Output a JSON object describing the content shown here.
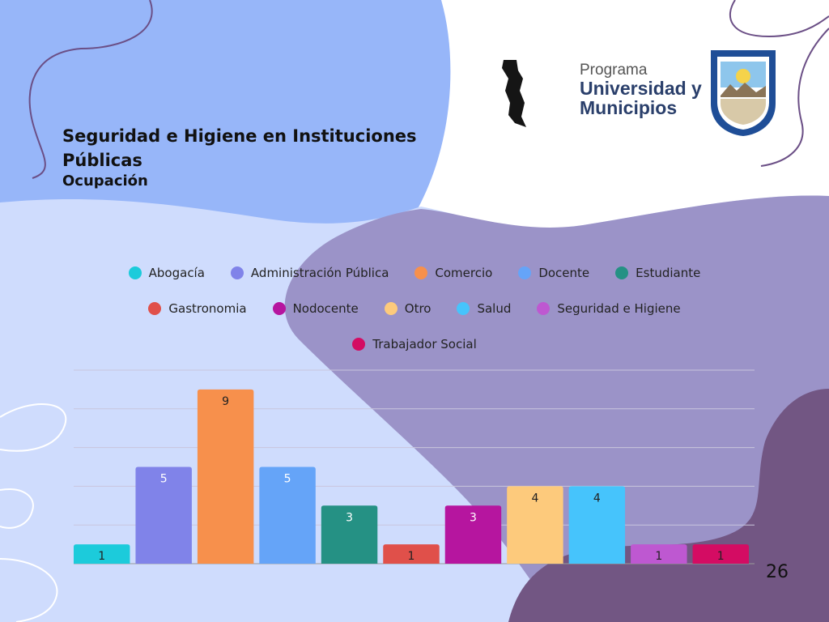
{
  "slide": {
    "title": "Seguridad e Higiene en Instituciones Públicas",
    "subtitle": "Ocupación",
    "page_number": "26"
  },
  "logo": {
    "line1": "Programa",
    "line2": "Universidad y",
    "line3": "Municipios",
    "icons": [
      "program-logo-icon",
      "university-seal-icon"
    ]
  },
  "colors": {
    "bg_blue_light": "#cfdcfd",
    "bg_blue": "#97b6f9",
    "bg_purple": "#9b93c8",
    "bg_dark_purple": "#725683",
    "line_purple": "#6b4f86"
  },
  "chart_data": {
    "type": "bar",
    "categories": [
      "Abogacía",
      "Administración Pública",
      "Comercio",
      "Docente",
      "Estudiante",
      "Gastronomia",
      "Nodocente",
      "Otro",
      "Salud",
      "Seguridad e Higiene",
      "Trabajador Social"
    ],
    "values": [
      1,
      5,
      9,
      5,
      3,
      1,
      3,
      4,
      4,
      1,
      1
    ],
    "colors": [
      "#1ccbdb",
      "#8083e9",
      "#f7904c",
      "#65a4f8",
      "#259184",
      "#e0504a",
      "#b6159f",
      "#fdca7c",
      "#46c4fc",
      "#be58d1",
      "#d40c63"
    ],
    "label_colors": [
      "#222222",
      "#ffffff",
      "#222222",
      "#ffffff",
      "#ffffff",
      "#222222",
      "#ffffff",
      "#222222",
      "#222222",
      "#222222",
      "#222222"
    ],
    "ylim": [
      0,
      10
    ],
    "grid": true,
    "legend_placement": "top"
  }
}
